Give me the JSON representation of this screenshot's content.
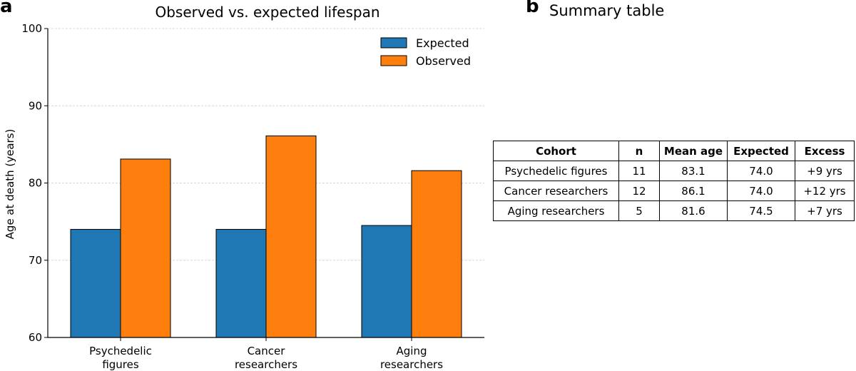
{
  "panel_a": {
    "letter": "a"
  },
  "panel_b": {
    "letter": "b",
    "title": "Summary table"
  },
  "chart_data": {
    "type": "bar",
    "title": "Observed vs. expected lifespan",
    "xlabel": "",
    "ylabel": "Age at death (years)",
    "categories": [
      "Psychedelic\nfigures",
      "Cancer\nresearchers",
      "Aging\nresearchers"
    ],
    "series": [
      {
        "name": "Expected",
        "values": [
          74.0,
          74.0,
          74.5
        ],
        "color": "#1f77b4"
      },
      {
        "name": "Observed",
        "values": [
          83.1,
          86.1,
          81.6
        ],
        "color": "#ff7f0e"
      }
    ],
    "ylim": [
      60,
      100
    ],
    "yticks": [
      60,
      70,
      80,
      90,
      100
    ],
    "grid": true,
    "legend_position": "top-right"
  },
  "summary_table": {
    "headers": [
      "Cohort",
      "n",
      "Mean age",
      "Expected",
      "Excess"
    ],
    "rows": [
      [
        "Psychedelic figures",
        "11",
        "83.1",
        "74.0",
        "+9 yrs"
      ],
      [
        "Cancer researchers",
        "12",
        "86.1",
        "74.0",
        "+12 yrs"
      ],
      [
        "Aging researchers",
        "5",
        "81.6",
        "74.5",
        "+7 yrs"
      ]
    ]
  }
}
